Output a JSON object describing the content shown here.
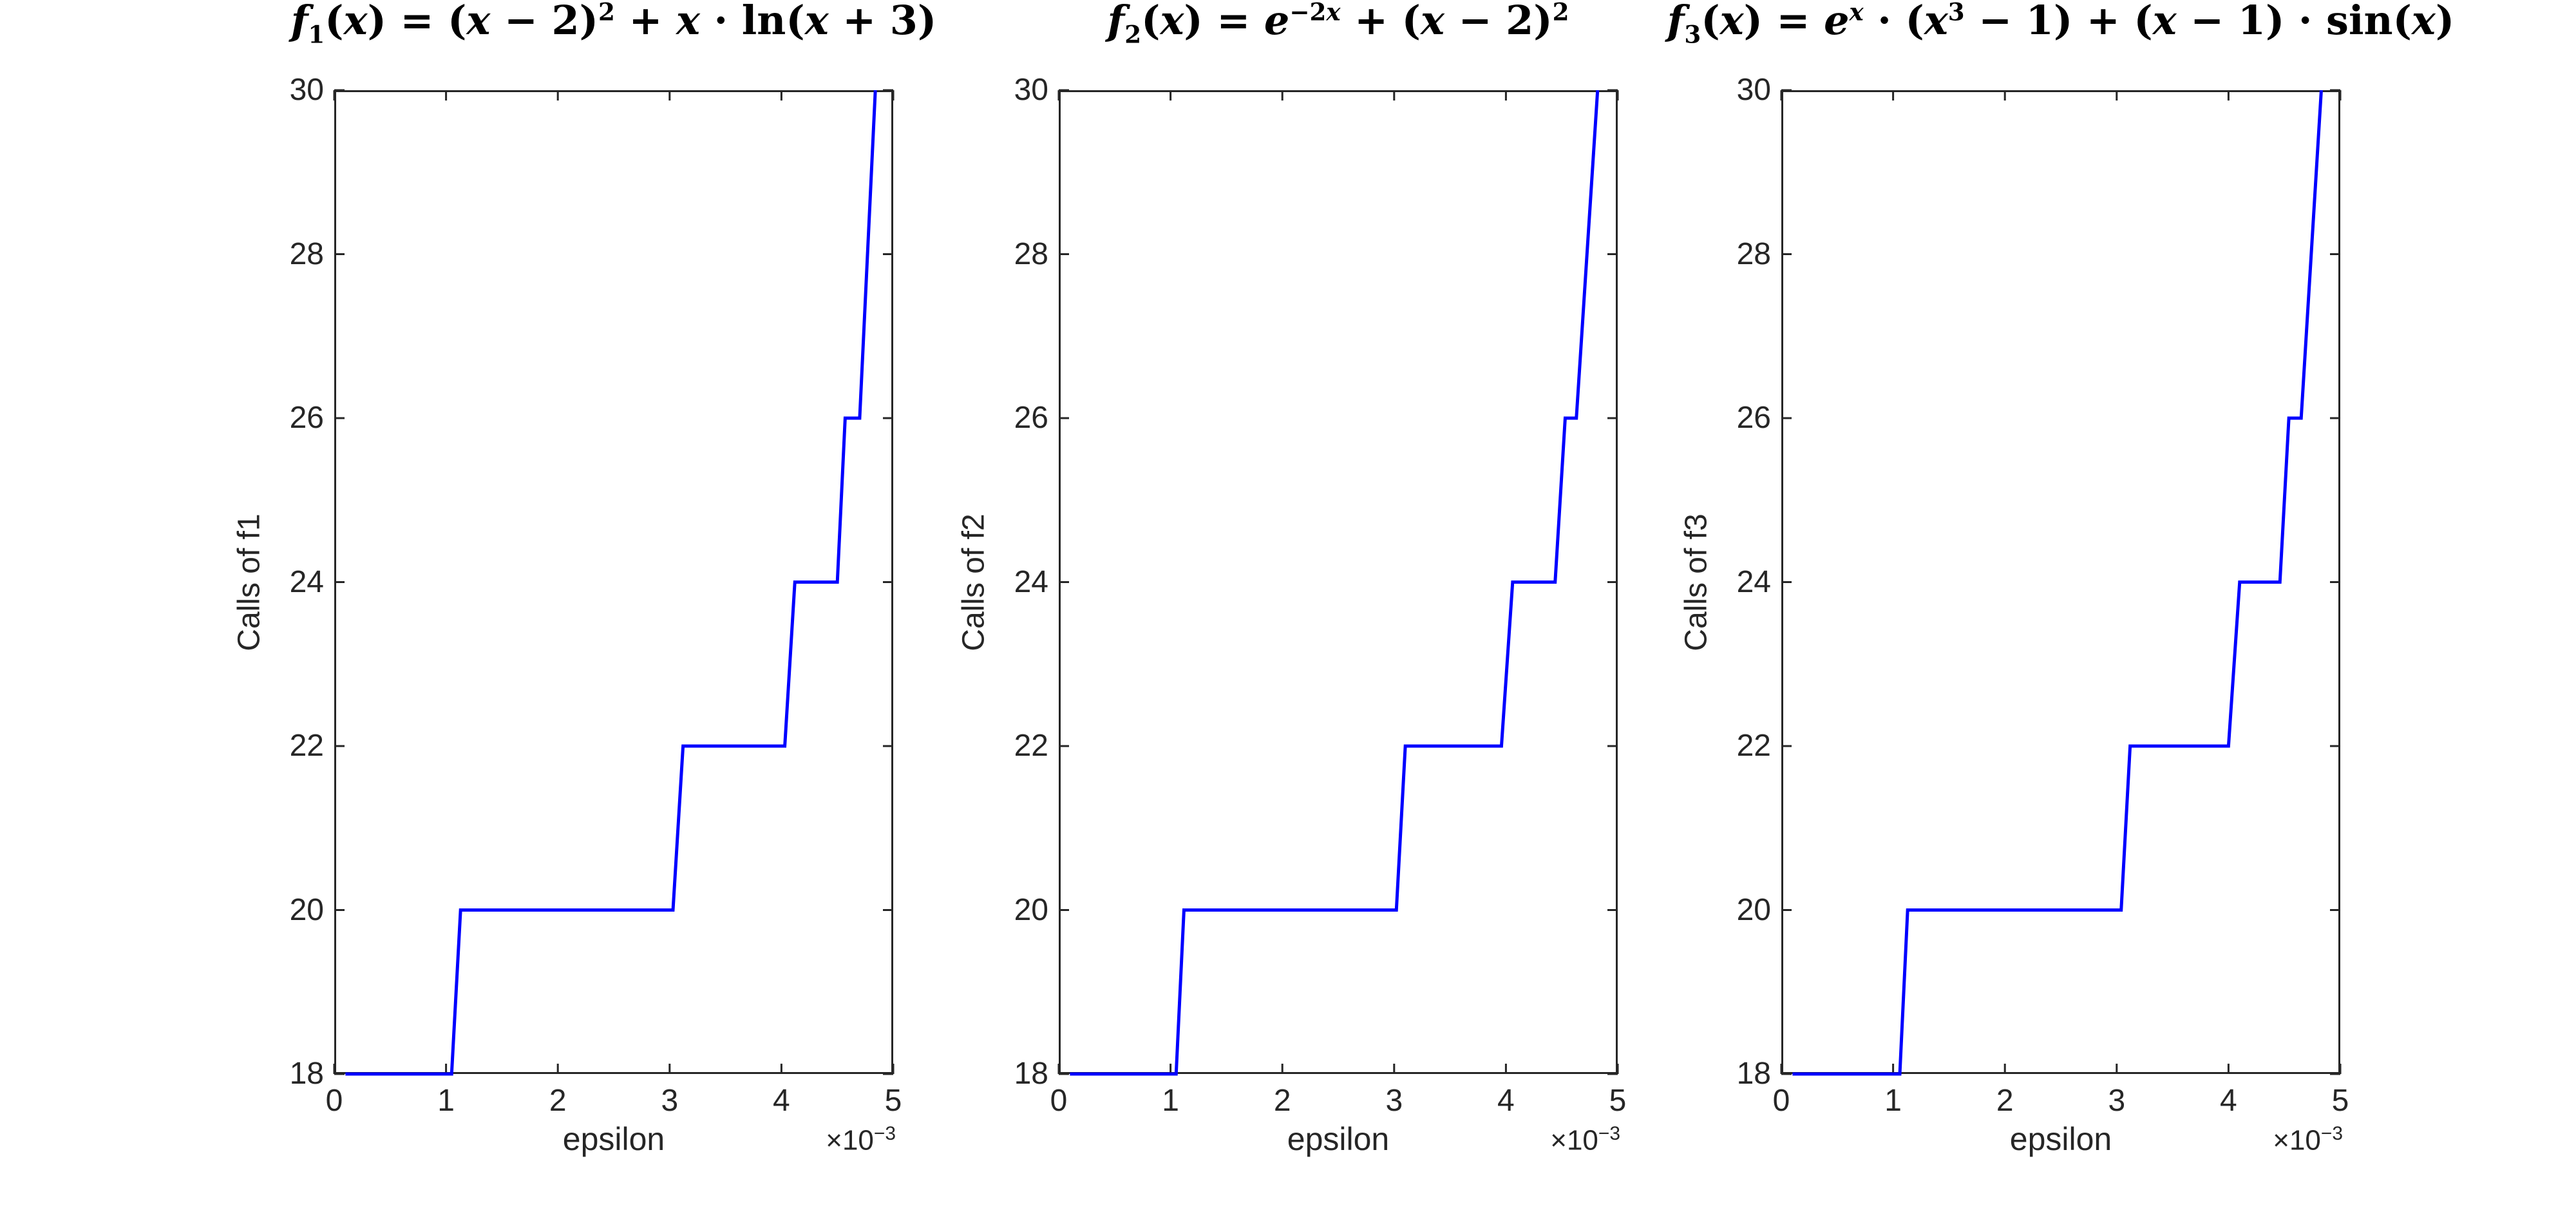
{
  "figure": {
    "background": "#ffffff",
    "axis_color": "#262626",
    "curve_color": "#0000ff"
  },
  "chart_data": [
    {
      "type": "line",
      "title_text": "f_1(x) = (x - 2)^2 + x · ln(x + 3)",
      "title_html": "<i>f</i><sub>1</sub>(<i>x</i>) = (<i>x</i> − 2)<sup>2</sup> + <i>x</i> · ln(<i>x</i> + 3)",
      "xlabel": "epsilon",
      "ylabel": "Calls of f1",
      "x_multiplier_text": "×10^-3",
      "x_multiplier_html": "×10<sup>−3</sup>",
      "x_scale": 0.001,
      "xlim": [
        0,
        5
      ],
      "ylim": [
        18,
        30
      ],
      "xticks": [
        0,
        1,
        2,
        3,
        4,
        5
      ],
      "yticks": [
        18,
        20,
        22,
        24,
        26,
        28,
        30
      ],
      "line_color": "#0000ff",
      "points": [
        [
          0.1,
          18
        ],
        [
          1.05,
          18
        ],
        [
          1.13,
          20
        ],
        [
          3.03,
          20
        ],
        [
          3.12,
          22
        ],
        [
          4.03,
          22
        ],
        [
          4.12,
          24
        ],
        [
          4.5,
          24
        ],
        [
          4.57,
          26
        ],
        [
          4.7,
          26
        ],
        [
          4.84,
          30
        ]
      ]
    },
    {
      "type": "line",
      "title_text": "f_2(x) = e^-2x + (x - 2)^2",
      "title_html": "<i>f</i><sub>2</sub>(<i>x</i>) = <i>e</i><sup>−2<i>x</i></sup> + (<i>x</i> − 2)<sup>2</sup>",
      "xlabel": "epsilon",
      "ylabel": "Calls of f2",
      "x_multiplier_text": "×10^-3",
      "x_multiplier_html": "×10<sup>−3</sup>",
      "x_scale": 0.001,
      "xlim": [
        0,
        5
      ],
      "ylim": [
        18,
        30
      ],
      "xticks": [
        0,
        1,
        2,
        3,
        4,
        5
      ],
      "yticks": [
        18,
        20,
        22,
        24,
        26,
        28,
        30
      ],
      "line_color": "#0000ff",
      "points": [
        [
          0.1,
          18
        ],
        [
          1.05,
          18
        ],
        [
          1.12,
          20
        ],
        [
          3.02,
          20
        ],
        [
          3.1,
          22
        ],
        [
          3.96,
          22
        ],
        [
          4.06,
          24
        ],
        [
          4.44,
          24
        ],
        [
          4.53,
          26
        ],
        [
          4.63,
          26
        ],
        [
          4.82,
          30
        ]
      ]
    },
    {
      "type": "line",
      "title_text": "f_3(x) = e^x · (x^3 - 1) + (x - 1) · sin(x)",
      "title_html": "<i>f</i><sub>3</sub>(<i>x</i>) = <i>e</i><sup><i>x</i></sup> · (<i>x</i><sup>3</sup> − 1) + (<i>x</i> − 1) · sin(<i>x</i>)",
      "xlabel": "epsilon",
      "ylabel": "Calls of f3",
      "x_multiplier_text": "×10^-3",
      "x_multiplier_html": "×10<sup>−3</sup>",
      "x_scale": 0.001,
      "xlim": [
        0,
        5
      ],
      "ylim": [
        18,
        30
      ],
      "xticks": [
        0,
        1,
        2,
        3,
        4,
        5
      ],
      "yticks": [
        18,
        20,
        22,
        24,
        26,
        28,
        30
      ],
      "line_color": "#0000ff",
      "points": [
        [
          0.1,
          18
        ],
        [
          1.06,
          18
        ],
        [
          1.13,
          20
        ],
        [
          3.04,
          20
        ],
        [
          3.12,
          22
        ],
        [
          4.0,
          22
        ],
        [
          4.1,
          24
        ],
        [
          4.46,
          24
        ],
        [
          4.54,
          26
        ],
        [
          4.65,
          26
        ],
        [
          4.83,
          30
        ]
      ]
    }
  ]
}
